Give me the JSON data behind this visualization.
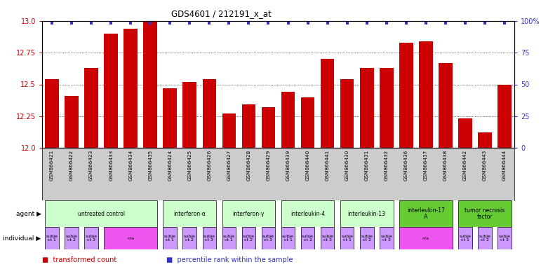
{
  "title": "GDS4601 / 212191_x_at",
  "samples": [
    "GSM866421",
    "GSM866422",
    "GSM866423",
    "GSM866433",
    "GSM866434",
    "GSM866435",
    "GSM866424",
    "GSM866425",
    "GSM866426",
    "GSM866427",
    "GSM866428",
    "GSM866429",
    "GSM866439",
    "GSM866440",
    "GSM866441",
    "GSM866430",
    "GSM866431",
    "GSM866432",
    "GSM866436",
    "GSM866437",
    "GSM866438",
    "GSM866442",
    "GSM866443",
    "GSM866444"
  ],
  "bar_values": [
    12.54,
    12.41,
    12.63,
    12.9,
    12.94,
    13.0,
    12.47,
    12.52,
    12.54,
    12.27,
    12.34,
    12.32,
    12.44,
    12.4,
    12.7,
    12.54,
    12.63,
    12.63,
    12.83,
    12.84,
    12.67,
    12.23,
    12.12,
    12.5
  ],
  "bar_color": "#cc0000",
  "percentile_color": "#3333cc",
  "ylim_left": [
    12.0,
    13.0
  ],
  "ylim_right": [
    0,
    100
  ],
  "yticks_left": [
    12.0,
    12.25,
    12.5,
    12.75,
    13.0
  ],
  "yticks_right": [
    0,
    25,
    50,
    75,
    100
  ],
  "ytick_labels_right": [
    "0",
    "25",
    "50",
    "75",
    "100%"
  ],
  "background_color": "#ffffff",
  "tick_color_left": "#cc0000",
  "tick_color_right": "#3333cc",
  "agent_groups": [
    {
      "label": "untreated control",
      "start": 0,
      "end": 5,
      "color": "#ccffcc"
    },
    {
      "label": "interferon-α",
      "start": 6,
      "end": 8,
      "color": "#ccffcc"
    },
    {
      "label": "interferon-γ",
      "start": 9,
      "end": 11,
      "color": "#ccffcc"
    },
    {
      "label": "interleukin-4",
      "start": 12,
      "end": 14,
      "color": "#ccffcc"
    },
    {
      "label": "interleukin-13",
      "start": 15,
      "end": 17,
      "color": "#ccffcc"
    },
    {
      "label": "interleukin-17\nA",
      "start": 18,
      "end": 20,
      "color": "#66cc33"
    },
    {
      "label": "tumor necrosis\nfactor",
      "start": 21,
      "end": 23,
      "color": "#66cc33"
    }
  ],
  "individual_cells": [
    {
      "start": 0,
      "end": 0,
      "label": "subje\nct 1",
      "color": "#cc99ff"
    },
    {
      "start": 1,
      "end": 1,
      "label": "subje\nct 2",
      "color": "#cc99ff"
    },
    {
      "start": 2,
      "end": 2,
      "label": "subje\nct 3",
      "color": "#cc99ff"
    },
    {
      "start": 3,
      "end": 5,
      "label": "n/a",
      "color": "#ee55ee"
    },
    {
      "start": 6,
      "end": 6,
      "label": "subje\nct 1",
      "color": "#cc99ff"
    },
    {
      "start": 7,
      "end": 7,
      "label": "subje\nct 2",
      "color": "#cc99ff"
    },
    {
      "start": 8,
      "end": 8,
      "label": "subje\nct 3",
      "color": "#cc99ff"
    },
    {
      "start": 9,
      "end": 9,
      "label": "subje\nct 1",
      "color": "#cc99ff"
    },
    {
      "start": 10,
      "end": 10,
      "label": "subje\nct 2",
      "color": "#cc99ff"
    },
    {
      "start": 11,
      "end": 11,
      "label": "subje\nct 3",
      "color": "#cc99ff"
    },
    {
      "start": 12,
      "end": 12,
      "label": "subje\nct 1",
      "color": "#cc99ff"
    },
    {
      "start": 13,
      "end": 13,
      "label": "subje\nct 2",
      "color": "#cc99ff"
    },
    {
      "start": 14,
      "end": 14,
      "label": "subje\nct 3",
      "color": "#cc99ff"
    },
    {
      "start": 15,
      "end": 15,
      "label": "subje\nct 1",
      "color": "#cc99ff"
    },
    {
      "start": 16,
      "end": 16,
      "label": "subje\nct 2",
      "color": "#cc99ff"
    },
    {
      "start": 17,
      "end": 17,
      "label": "subje\nct 3",
      "color": "#cc99ff"
    },
    {
      "start": 18,
      "end": 20,
      "label": "n/a",
      "color": "#ee55ee"
    },
    {
      "start": 21,
      "end": 21,
      "label": "subje\nct 1",
      "color": "#cc99ff"
    },
    {
      "start": 22,
      "end": 22,
      "label": "subje\nct 2",
      "color": "#cc99ff"
    },
    {
      "start": 23,
      "end": 23,
      "label": "subje\nct 3",
      "color": "#cc99ff"
    }
  ]
}
